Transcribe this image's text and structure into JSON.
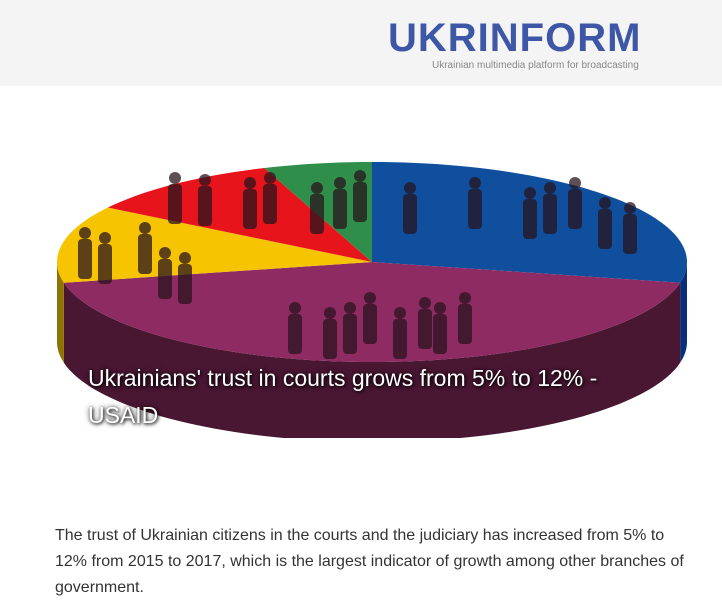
{
  "header": {
    "logo": "UKRINFORM",
    "tagline": "Ukrainian multimedia platform for broadcasting"
  },
  "article": {
    "headline": "Ukrainians' trust in courts grows from 5% to 12% - USAID",
    "body": "The trust of Ukrainian citizens in the courts and the judiciary has increased from 5% to 12% from 2015 to 2017, which is the largest indicator of growth among other branches of government."
  }
}
